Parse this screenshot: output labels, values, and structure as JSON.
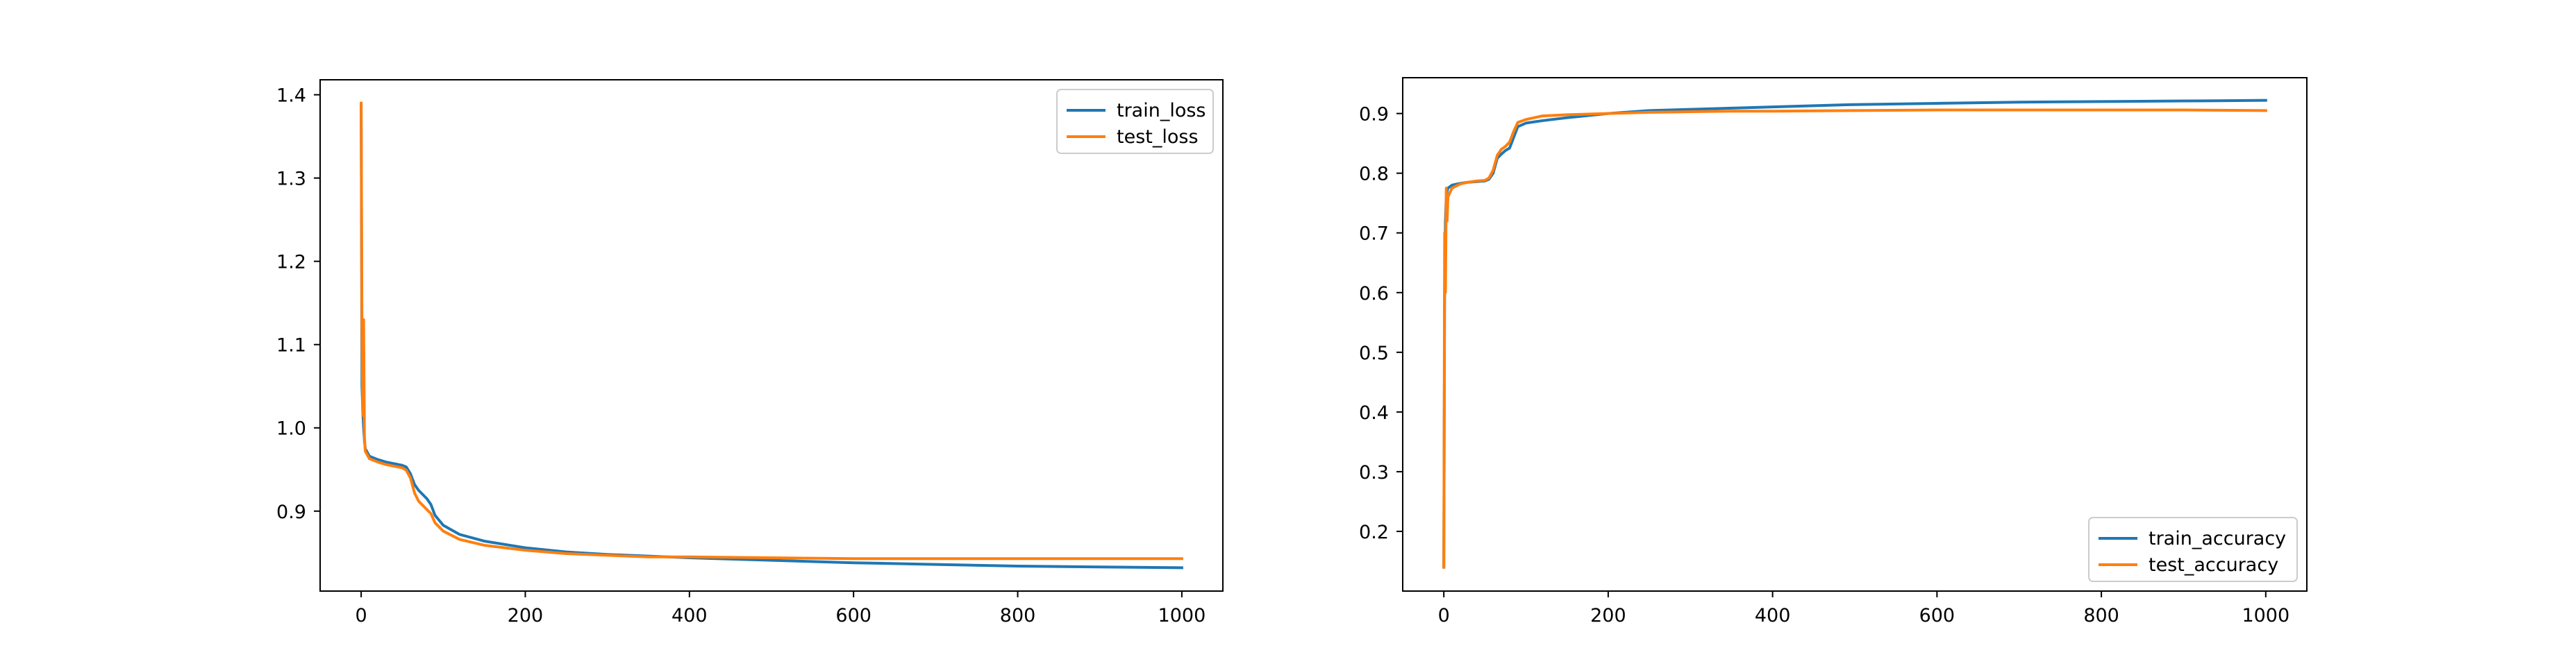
{
  "chart_data": [
    {
      "type": "line",
      "title": "",
      "xlabel": "",
      "ylabel": "",
      "xlim": [
        -50,
        1050
      ],
      "ylim": [
        0.804,
        1.418
      ],
      "xticks": [
        0,
        200,
        400,
        600,
        800,
        1000
      ],
      "xtick_labels": [
        "0",
        "200",
        "400",
        "600",
        "800",
        "1000"
      ],
      "yticks": [
        0.9,
        1.0,
        1.1,
        1.2,
        1.3,
        1.4
      ],
      "ytick_labels": [
        "0.9",
        "1.0",
        "1.1",
        "1.2",
        "1.3",
        "1.4"
      ],
      "grid": false,
      "legend": "upper right",
      "series": [
        {
          "name": "train_loss",
          "color": "#1f77b4",
          "x": [
            0,
            1,
            2,
            3,
            4,
            5,
            10,
            20,
            30,
            40,
            50,
            55,
            60,
            65,
            70,
            75,
            80,
            85,
            90,
            100,
            120,
            150,
            200,
            250,
            300,
            350,
            400,
            500,
            600,
            700,
            800,
            900,
            1000
          ],
          "y": [
            1.388,
            1.05,
            1.02,
            1.0,
            0.985,
            0.975,
            0.966,
            0.962,
            0.959,
            0.957,
            0.955,
            0.953,
            0.945,
            0.932,
            0.925,
            0.92,
            0.915,
            0.908,
            0.895,
            0.883,
            0.872,
            0.864,
            0.856,
            0.851,
            0.848,
            0.846,
            0.844,
            0.841,
            0.838,
            0.836,
            0.834,
            0.833,
            0.832
          ]
        },
        {
          "name": "test_loss",
          "color": "#ff7f0e",
          "x": [
            0,
            1,
            2,
            3,
            4,
            5,
            10,
            20,
            30,
            40,
            50,
            55,
            60,
            65,
            70,
            75,
            80,
            85,
            90,
            100,
            120,
            150,
            200,
            250,
            300,
            350,
            400,
            500,
            600,
            700,
            800,
            900,
            1000
          ],
          "y": [
            1.39,
            1.12,
            1.015,
            1.13,
            0.99,
            0.972,
            0.963,
            0.959,
            0.956,
            0.954,
            0.952,
            0.949,
            0.94,
            0.922,
            0.912,
            0.907,
            0.902,
            0.897,
            0.886,
            0.876,
            0.866,
            0.859,
            0.853,
            0.849,
            0.847,
            0.845,
            0.845,
            0.844,
            0.843,
            0.843,
            0.843,
            0.843,
            0.843
          ]
        }
      ]
    },
    {
      "type": "line",
      "title": "",
      "xlabel": "",
      "ylabel": "",
      "xlim": [
        -50,
        1050
      ],
      "ylim": [
        0.1,
        0.96
      ],
      "xticks": [
        0,
        200,
        400,
        600,
        800,
        1000
      ],
      "xtick_labels": [
        "0",
        "200",
        "400",
        "600",
        "800",
        "1000"
      ],
      "yticks": [
        0.2,
        0.3,
        0.4,
        0.5,
        0.6,
        0.7,
        0.8,
        0.9
      ],
      "ytick_labels": [
        "0.2",
        "0.3",
        "0.4",
        "0.5",
        "0.6",
        "0.7",
        "0.8",
        "0.9"
      ],
      "grid": false,
      "legend": "lower right",
      "series": [
        {
          "name": "train_accuracy",
          "color": "#1f77b4",
          "x": [
            0,
            1,
            2,
            3,
            4,
            5,
            10,
            20,
            30,
            40,
            50,
            55,
            60,
            65,
            70,
            75,
            80,
            85,
            90,
            100,
            120,
            150,
            200,
            250,
            300,
            350,
            400,
            500,
            600,
            700,
            800,
            900,
            1000
          ],
          "y": [
            0.14,
            0.6,
            0.72,
            0.76,
            0.77,
            0.775,
            0.78,
            0.783,
            0.785,
            0.786,
            0.787,
            0.79,
            0.8,
            0.825,
            0.832,
            0.838,
            0.842,
            0.86,
            0.878,
            0.884,
            0.888,
            0.893,
            0.9,
            0.905,
            0.907,
            0.909,
            0.911,
            0.915,
            0.917,
            0.919,
            0.92,
            0.921,
            0.922
          ]
        },
        {
          "name": "test_accuracy",
          "color": "#ff7f0e",
          "x": [
            0,
            1,
            2,
            3,
            4,
            5,
            10,
            20,
            30,
            40,
            50,
            55,
            60,
            65,
            70,
            75,
            80,
            85,
            90,
            100,
            120,
            150,
            200,
            250,
            300,
            350,
            400,
            500,
            600,
            700,
            800,
            900,
            1000
          ],
          "y": [
            0.14,
            0.7,
            0.6,
            0.775,
            0.72,
            0.76,
            0.775,
            0.782,
            0.785,
            0.787,
            0.788,
            0.792,
            0.805,
            0.83,
            0.84,
            0.845,
            0.852,
            0.87,
            0.885,
            0.89,
            0.896,
            0.898,
            0.9,
            0.902,
            0.903,
            0.904,
            0.904,
            0.905,
            0.906,
            0.906,
            0.906,
            0.906,
            0.905
          ]
        }
      ]
    }
  ]
}
